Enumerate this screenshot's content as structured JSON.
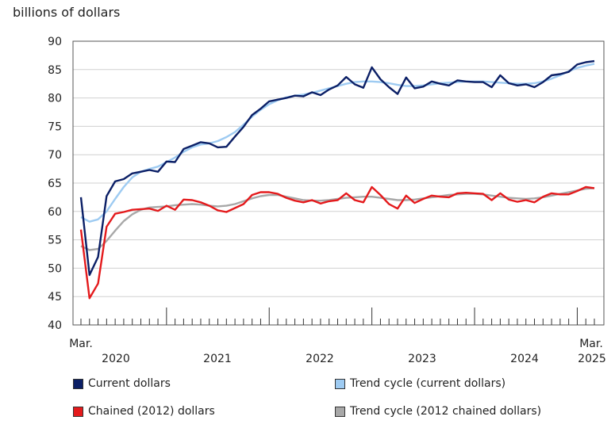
{
  "chart_data": {
    "type": "line",
    "title": "",
    "ylabel": "billions of dollars",
    "xlabel": "",
    "ylim": [
      40,
      90
    ],
    "yticks": [
      40,
      45,
      50,
      55,
      60,
      65,
      70,
      75,
      80,
      85,
      90
    ],
    "grid": true,
    "x_start": "2020-03",
    "x_end": "2025-03",
    "x_edge_labels": [
      "Mar.",
      "Mar."
    ],
    "x_year_labels": [
      "2020",
      "2021",
      "2022",
      "2023",
      "2024",
      "2025"
    ],
    "legend_position": "bottom",
    "series": [
      {
        "name": "Current dollars",
        "color": "#0b1f66",
        "values": [
          62.5,
          48.8,
          52.0,
          62.7,
          65.3,
          65.7,
          66.7,
          67.0,
          67.3,
          67.0,
          68.8,
          68.7,
          71.0,
          71.6,
          72.2,
          72.0,
          71.3,
          71.4,
          73.2,
          74.9,
          77.0,
          78.1,
          79.4,
          79.7,
          80.0,
          80.4,
          80.3,
          81.0,
          80.5,
          81.5,
          82.2,
          83.7,
          82.4,
          81.8,
          85.4,
          83.3,
          81.9,
          80.7,
          83.6,
          81.7,
          82.0,
          82.9,
          82.5,
          82.2,
          83.1,
          82.9,
          82.8,
          82.8,
          81.9,
          84.0,
          82.6,
          82.2,
          82.4,
          81.9,
          82.8,
          84.0,
          84.2,
          84.6,
          85.9,
          86.3,
          86.5
        ]
      },
      {
        "name": "Trend cycle (current dollars)",
        "color": "#9ecbf2",
        "values": [
          59.0,
          58.2,
          58.6,
          60.0,
          62.2,
          64.3,
          66.0,
          67.0,
          67.5,
          67.9,
          68.7,
          69.5,
          70.5,
          71.3,
          71.8,
          72.0,
          72.4,
          73.1,
          74.0,
          75.3,
          76.7,
          77.9,
          78.9,
          79.6,
          80.1,
          80.4,
          80.6,
          80.9,
          81.3,
          81.7,
          82.1,
          82.5,
          82.8,
          82.9,
          82.9,
          82.8,
          82.6,
          82.3,
          82.1,
          82.1,
          82.2,
          82.4,
          82.6,
          82.7,
          82.8,
          82.9,
          82.9,
          82.9,
          82.8,
          82.7,
          82.6,
          82.5,
          82.5,
          82.6,
          82.9,
          83.4,
          84.0,
          84.7,
          85.3,
          85.7,
          86.0
        ]
      },
      {
        "name": "Chained (2012) dollars",
        "color": "#e41a1c",
        "values": [
          56.8,
          44.7,
          47.3,
          57.3,
          59.6,
          59.9,
          60.3,
          60.4,
          60.5,
          60.1,
          61.0,
          60.3,
          62.1,
          62.0,
          61.6,
          61.0,
          60.2,
          59.9,
          60.6,
          61.3,
          62.9,
          63.4,
          63.4,
          63.1,
          62.4,
          61.9,
          61.6,
          62.0,
          61.4,
          61.8,
          62.0,
          63.2,
          62.0,
          61.6,
          64.3,
          62.9,
          61.3,
          60.5,
          62.8,
          61.5,
          62.2,
          62.8,
          62.6,
          62.5,
          63.2,
          63.3,
          63.2,
          63.1,
          62.0,
          63.2,
          62.1,
          61.7,
          62.0,
          61.6,
          62.6,
          63.2,
          63.0,
          63.0,
          63.6,
          64.3,
          64.1
        ]
      },
      {
        "name": "Trend cycle (2012 chained dollars)",
        "color": "#a8a8a8",
        "values": [
          53.9,
          53.2,
          53.4,
          54.8,
          56.6,
          58.3,
          59.5,
          60.3,
          60.7,
          60.8,
          60.9,
          61.1,
          61.2,
          61.3,
          61.2,
          61.0,
          60.9,
          61.0,
          61.3,
          61.8,
          62.3,
          62.7,
          62.9,
          62.9,
          62.6,
          62.3,
          62.0,
          61.9,
          61.9,
          62.0,
          62.2,
          62.4,
          62.5,
          62.6,
          62.6,
          62.4,
          62.2,
          62.0,
          62.0,
          62.1,
          62.3,
          62.5,
          62.7,
          62.9,
          63.0,
          63.1,
          63.1,
          63.0,
          62.8,
          62.6,
          62.4,
          62.3,
          62.2,
          62.3,
          62.5,
          62.8,
          63.1,
          63.4,
          63.7,
          64.0,
          64.1
        ]
      }
    ]
  }
}
